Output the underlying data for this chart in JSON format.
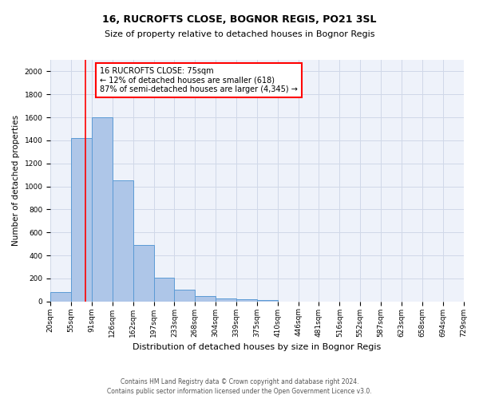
{
  "title": "16, RUCROFTS CLOSE, BOGNOR REGIS, PO21 3SL",
  "subtitle": "Size of property relative to detached houses in Bognor Regis",
  "xlabel": "Distribution of detached houses by size in Bognor Regis",
  "ylabel": "Number of detached properties",
  "footer_line1": "Contains HM Land Registry data © Crown copyright and database right 2024.",
  "footer_line2": "Contains public sector information licensed under the Open Government Licence v3.0.",
  "bins": [
    "20sqm",
    "55sqm",
    "91sqm",
    "126sqm",
    "162sqm",
    "197sqm",
    "233sqm",
    "268sqm",
    "304sqm",
    "339sqm",
    "375sqm",
    "410sqm",
    "446sqm",
    "481sqm",
    "516sqm",
    "552sqm",
    "587sqm",
    "623sqm",
    "658sqm",
    "694sqm",
    "729sqm"
  ],
  "values": [
    80,
    1420,
    1600,
    1050,
    490,
    205,
    105,
    45,
    25,
    15,
    10,
    0,
    0,
    0,
    0,
    0,
    0,
    0,
    0,
    0
  ],
  "bar_color": "#AEC6E8",
  "bar_edge_color": "#5B9BD5",
  "red_line_x": 1.7,
  "ylim": [
    0,
    2100
  ],
  "yticks": [
    0,
    200,
    400,
    600,
    800,
    1000,
    1200,
    1400,
    1600,
    1800,
    2000
  ],
  "annotation_text": "16 RUCROFTS CLOSE: 75sqm\n← 12% of detached houses are smaller (618)\n87% of semi-detached houses are larger (4,345) →",
  "annotation_box_color": "white",
  "annotation_box_edgecolor": "red",
  "grid_color": "#D0D8E8",
  "background_color": "#EEF2FA",
  "title_fontsize": 9,
  "subtitle_fontsize": 8,
  "xlabel_fontsize": 8,
  "ylabel_fontsize": 7.5,
  "tick_fontsize": 6.5,
  "footer_fontsize": 5.5,
  "annot_fontsize": 7
}
